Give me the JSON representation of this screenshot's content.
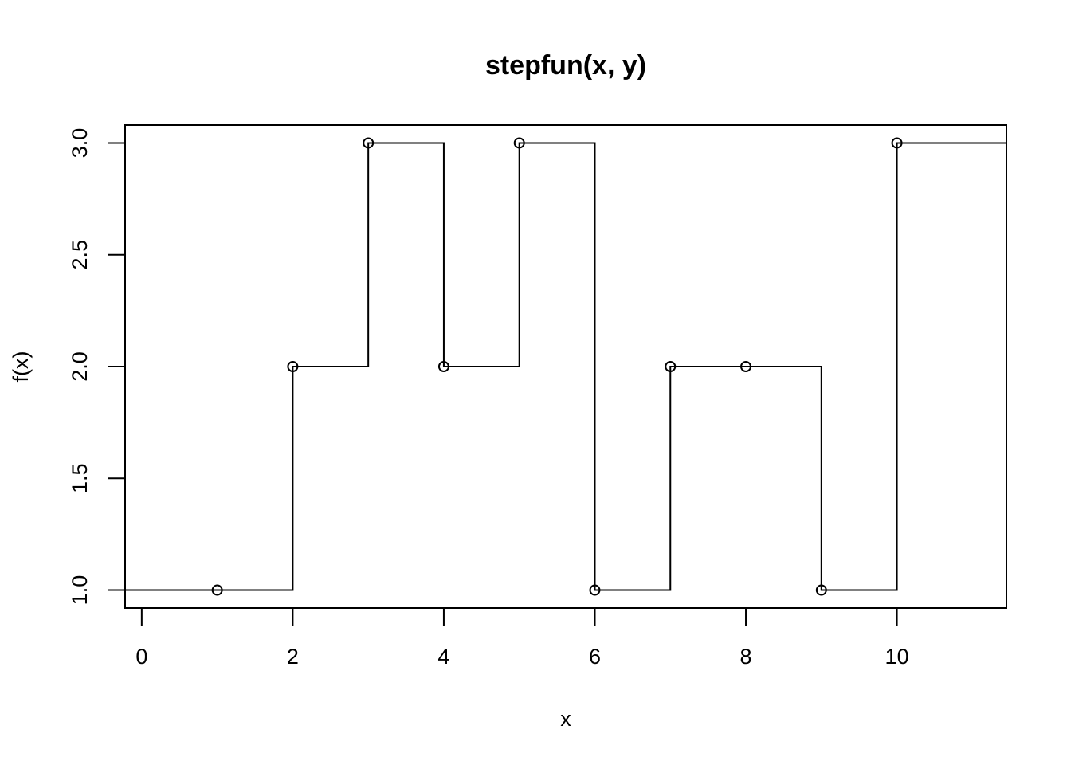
{
  "chart_data": {
    "type": "line",
    "title": "stepfun(x, y)",
    "xlabel": "x",
    "ylabel": "f(x)",
    "xlim": [
      -0.22,
      11.45
    ],
    "ylim": [
      0.92,
      3.08
    ],
    "x_ticks": [
      0,
      2,
      4,
      6,
      8,
      10
    ],
    "x_tick_labels": [
      "0",
      "2",
      "4",
      "6",
      "8",
      "10"
    ],
    "y_ticks": [
      1.0,
      1.5,
      2.0,
      2.5,
      3.0
    ],
    "y_tick_labels": [
      "1.0",
      "1.5",
      "2.0",
      "2.5",
      "3.0"
    ],
    "grid": false,
    "step": "right-continuous",
    "left_value": 1,
    "points": {
      "x": [
        1,
        2,
        3,
        4,
        5,
        6,
        7,
        8,
        9,
        10
      ],
      "y": [
        1,
        2,
        3,
        2,
        3,
        1,
        2,
        2,
        1,
        3
      ]
    }
  }
}
